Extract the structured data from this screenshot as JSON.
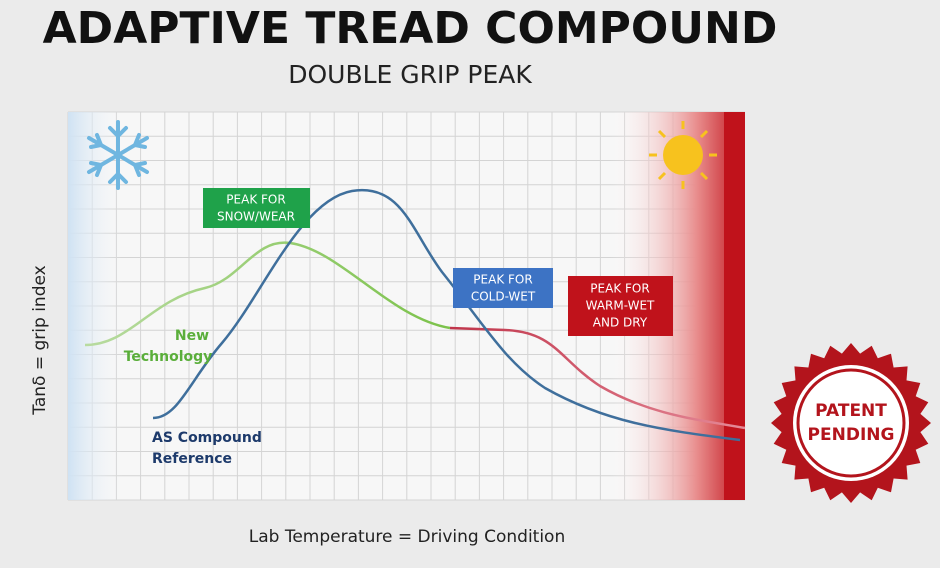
{
  "header": {
    "title": "ADAPTIVE TREAD COMPOUND",
    "subtitle": "DOUBLE GRIP PEAK"
  },
  "axes": {
    "y_label": "Tanδ = grip index",
    "x_label": "Lab Temperature = Driving Condition"
  },
  "callouts": [
    {
      "lines": [
        "PEAK FOR",
        "SNOW/WEAR"
      ]
    },
    {
      "lines": [
        "PEAK FOR",
        "COLD-WET"
      ]
    },
    {
      "lines": [
        "PEAK FOR",
        "WARM-WET",
        "AND DRY"
      ]
    }
  ],
  "curve_labels": [
    {
      "lines": [
        "New",
        "Technology"
      ]
    },
    {
      "lines": [
        "AS Compound",
        "Reference"
      ]
    }
  ],
  "badge": {
    "lines": [
      "PATENT",
      "PENDING"
    ]
  }
}
